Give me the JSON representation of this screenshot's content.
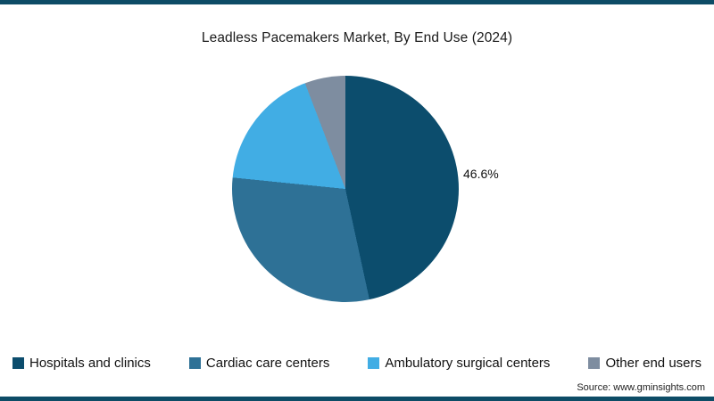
{
  "page": {
    "accent_color": "#0d4c66",
    "source": "Source: www.gminsights.com"
  },
  "chart_data": {
    "type": "pie",
    "title": "Leadless Pacemakers Market, By End Use (2024)",
    "legend_position": "bottom",
    "start_angle_deg": 0,
    "direction": "clockwise",
    "slices": [
      {
        "label": "Hospitals and clinics",
        "value": 46.6,
        "color": "#0c4d6d",
        "data_label": "46.6%"
      },
      {
        "label": "Cardiac care centers",
        "value": 30.0,
        "color": "#2e7196"
      },
      {
        "label": "Ambulatory surgical centers",
        "value": 17.6,
        "color": "#41ade4"
      },
      {
        "label": "Other end users",
        "value": 5.8,
        "color": "#7e8da0"
      }
    ],
    "annotations": [
      {
        "text": "46.6%",
        "slice": "Hospitals and clinics",
        "position": "right-of-pie"
      }
    ]
  }
}
